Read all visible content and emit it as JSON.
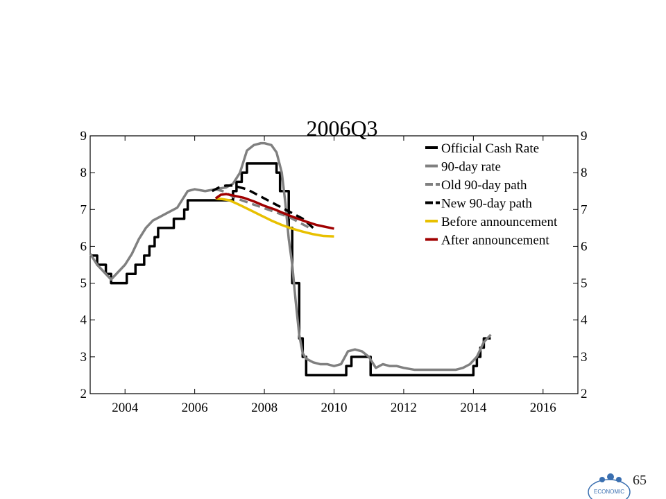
{
  "page": {
    "page_number": "65",
    "logo_text": "ECONOMIC"
  },
  "chart_data": {
    "type": "line",
    "title": "2006Q3",
    "xlabel": "",
    "ylabel": "",
    "xlim": [
      2003.0,
      2017.0
    ],
    "ylim": [
      2,
      9
    ],
    "xticks": [
      2004,
      2006,
      2008,
      2010,
      2012,
      2014,
      2016
    ],
    "yticks": [
      2,
      3,
      4,
      5,
      6,
      7,
      8,
      9
    ],
    "legend_position": "top-right",
    "grid": false,
    "series": [
      {
        "name": "Official Cash Rate",
        "color": "#000000",
        "style": "step",
        "x": [
          2003.0,
          2003.2,
          2003.45,
          2003.6,
          2003.8,
          2004.05,
          2004.3,
          2004.55,
          2004.7,
          2004.85,
          2004.95,
          2005.1,
          2005.4,
          2005.7,
          2005.8,
          2006.1,
          2006.4,
          2007.1,
          2007.2,
          2007.35,
          2007.5,
          2007.6,
          2007.75,
          2008.35,
          2008.45,
          2008.5,
          2008.7,
          2008.8,
          2008.9,
          2009.0,
          2009.1,
          2009.2,
          2009.3,
          2009.5,
          2009.8,
          2010.35,
          2010.5,
          2010.6,
          2010.8,
          2011.05,
          2011.2,
          2011.6,
          2012.0,
          2013.0,
          2014.0,
          2014.1,
          2014.2,
          2014.3,
          2014.4,
          2014.5
        ],
        "y": [
          5.75,
          5.5,
          5.25,
          5.0,
          5.0,
          5.25,
          5.5,
          5.75,
          6.0,
          6.25,
          6.5,
          6.5,
          6.75,
          7.0,
          7.25,
          7.25,
          7.25,
          7.5,
          7.75,
          8.0,
          8.25,
          8.25,
          8.25,
          8.0,
          7.5,
          7.5,
          6.5,
          5.0,
          5.0,
          3.5,
          3.0,
          2.5,
          2.5,
          2.5,
          2.5,
          2.75,
          3.0,
          3.0,
          3.0,
          2.5,
          2.5,
          2.5,
          2.5,
          2.5,
          2.75,
          3.0,
          3.25,
          3.5,
          3.5,
          3.5
        ]
      },
      {
        "name": "90-day rate",
        "color": "#808080",
        "style": "solid",
        "x": [
          2003.0,
          2003.2,
          2003.4,
          2003.6,
          2003.8,
          2004.0,
          2004.2,
          2004.4,
          2004.6,
          2004.8,
          2005.0,
          2005.2,
          2005.5,
          2005.8,
          2006.0,
          2006.3,
          2006.6,
          2006.9,
          2007.1,
          2007.3,
          2007.5,
          2007.7,
          2007.9,
          2008.0,
          2008.2,
          2008.35,
          2008.5,
          2008.6,
          2008.7,
          2008.8,
          2008.9,
          2009.0,
          2009.1,
          2009.2,
          2009.4,
          2009.6,
          2009.8,
          2010.0,
          2010.2,
          2010.4,
          2010.6,
          2010.8,
          2011.0,
          2011.2,
          2011.4,
          2011.6,
          2011.8,
          2012.0,
          2012.3,
          2012.6,
          2012.9,
          2013.2,
          2013.5,
          2013.7,
          2013.9,
          2014.1,
          2014.3,
          2014.5
        ],
        "y": [
          5.8,
          5.5,
          5.3,
          5.1,
          5.3,
          5.5,
          5.8,
          6.2,
          6.5,
          6.7,
          6.8,
          6.9,
          7.05,
          7.5,
          7.55,
          7.5,
          7.55,
          7.6,
          7.7,
          8.0,
          8.6,
          8.75,
          8.8,
          8.8,
          8.75,
          8.55,
          8.0,
          7.2,
          6.2,
          5.5,
          4.5,
          3.6,
          3.1,
          2.95,
          2.85,
          2.8,
          2.8,
          2.75,
          2.8,
          3.15,
          3.2,
          3.15,
          3.0,
          2.7,
          2.8,
          2.75,
          2.75,
          2.7,
          2.65,
          2.65,
          2.65,
          2.65,
          2.65,
          2.7,
          2.8,
          3.0,
          3.4,
          3.6
        ]
      },
      {
        "name": "Old 90-day path",
        "color": "#808080",
        "style": "dashed",
        "x": [
          2006.6,
          2006.8,
          2007.0,
          2007.2,
          2007.5,
          2007.8,
          2008.1,
          2008.4,
          2008.7,
          2009.0,
          2009.3
        ],
        "y": [
          7.55,
          7.5,
          7.4,
          7.3,
          7.2,
          7.1,
          7.0,
          6.9,
          6.8,
          6.65,
          6.5
        ]
      },
      {
        "name": "New 90-day path",
        "color": "#000000",
        "style": "dashed",
        "x": [
          2006.5,
          2006.7,
          2006.9,
          2007.1,
          2007.3,
          2007.5,
          2007.7,
          2007.9,
          2008.2,
          2008.5,
          2008.8,
          2009.1,
          2009.4
        ],
        "y": [
          7.5,
          7.6,
          7.65,
          7.65,
          7.6,
          7.55,
          7.45,
          7.35,
          7.2,
          7.05,
          6.9,
          6.75,
          6.5
        ]
      },
      {
        "name": "Before announcement",
        "color": "#e8c000",
        "style": "solid",
        "x": [
          2006.6,
          2006.8,
          2007.0,
          2007.3,
          2007.6,
          2007.9,
          2008.2,
          2008.5,
          2008.8,
          2009.1,
          2009.4,
          2009.7,
          2010.0
        ],
        "y": [
          7.3,
          7.28,
          7.25,
          7.12,
          6.98,
          6.84,
          6.7,
          6.58,
          6.48,
          6.4,
          6.33,
          6.28,
          6.27
        ]
      },
      {
        "name": "After announcement",
        "color": "#a00000",
        "style": "solid",
        "x": [
          2006.6,
          2006.75,
          2006.9,
          2007.1,
          2007.4,
          2007.7,
          2008.0,
          2008.3,
          2008.6,
          2008.9,
          2009.2,
          2009.5,
          2009.8,
          2010.0
        ],
        "y": [
          7.3,
          7.4,
          7.42,
          7.38,
          7.32,
          7.22,
          7.1,
          7.0,
          6.88,
          6.77,
          6.67,
          6.58,
          6.52,
          6.48
        ]
      }
    ]
  }
}
